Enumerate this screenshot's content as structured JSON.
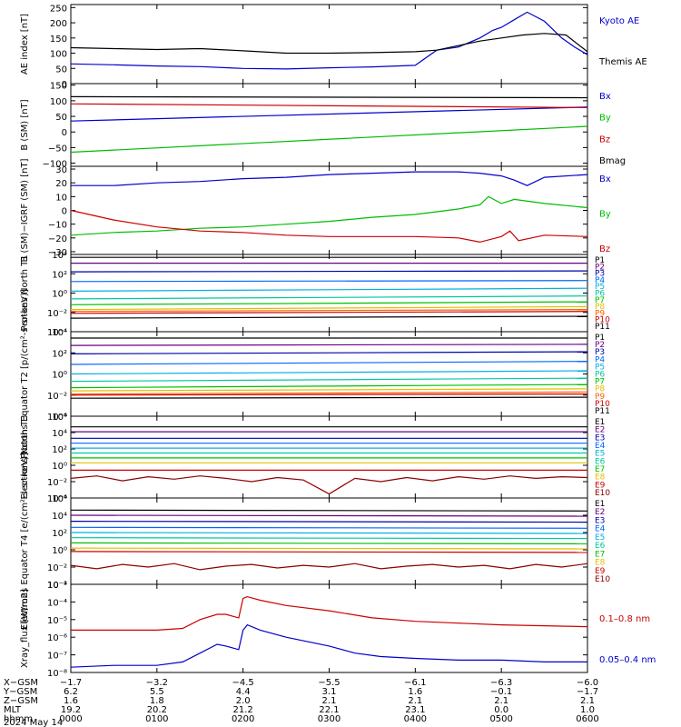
{
  "chart_data": [
    {
      "type": "line",
      "ylabel": "AE index [nT]",
      "yticks": [
        "0",
        "50",
        "100",
        "150",
        "200",
        "250"
      ],
      "ylim": [
        0,
        260
      ],
      "log": false,
      "series": [
        {
          "name": "Kyoto AE",
          "color": "#0000cc",
          "x": [
            0,
            0.5,
            1,
            1.5,
            2,
            2.5,
            3,
            3.5,
            4,
            4.25,
            4.5,
            4.75,
            4.9,
            5.0,
            5.15,
            5.3,
            5.5,
            5.7,
            5.85,
            6.0
          ],
          "values": [
            65,
            62,
            58,
            56,
            50,
            48,
            52,
            55,
            60,
            110,
            120,
            150,
            175,
            185,
            210,
            235,
            205,
            150,
            120,
            95
          ]
        },
        {
          "name": "Themis AE",
          "color": "#000000",
          "x": [
            0,
            0.5,
            1,
            1.5,
            2,
            2.5,
            3,
            3.5,
            4,
            4.25,
            4.5,
            4.75,
            5.0,
            5.25,
            5.5,
            5.75,
            6.0
          ],
          "values": [
            118,
            115,
            112,
            115,
            108,
            100,
            100,
            102,
            105,
            110,
            125,
            140,
            150,
            160,
            165,
            160,
            105
          ]
        }
      ]
    },
    {
      "type": "line",
      "ylabel": "B (SM) [nT]",
      "yticks": [
        "−100",
        "−50",
        "0",
        "50",
        "100",
        "150"
      ],
      "ylim": [
        -110,
        155
      ],
      "log": false,
      "series": [
        {
          "name": "Bx",
          "color": "#0000cc",
          "x": [
            0,
            6
          ],
          "values": [
            35,
            80
          ]
        },
        {
          "name": "By",
          "color": "#00bb00",
          "x": [
            0,
            6
          ],
          "values": [
            -65,
            18
          ]
        },
        {
          "name": "Bz",
          "color": "#cc0000",
          "x": [
            0,
            6
          ],
          "values": [
            90,
            78
          ]
        },
        {
          "name": "Bmag",
          "color": "#000000",
          "x": [
            0,
            6
          ],
          "values": [
            113,
            110
          ]
        }
      ]
    },
    {
      "type": "line",
      "ylabel": "B (SM)−IGRF (SM) [nT]",
      "yticks": [
        "−30",
        "−20",
        "−10",
        "0",
        "10",
        "20",
        "30"
      ],
      "ylim": [
        -32,
        32
      ],
      "log": false,
      "series": [
        {
          "name": "Bx",
          "color": "#0000cc",
          "x": [
            0,
            0.5,
            1,
            1.5,
            2,
            2.5,
            3,
            3.5,
            4,
            4.5,
            4.75,
            5.0,
            5.15,
            5.3,
            5.5,
            6.0
          ],
          "values": [
            18,
            18,
            20,
            21,
            23,
            24,
            26,
            27,
            28,
            28,
            27,
            25,
            22,
            18,
            24,
            26
          ]
        },
        {
          "name": "By",
          "color": "#00bb00",
          "x": [
            0,
            0.5,
            1,
            1.5,
            2,
            2.5,
            3,
            3.5,
            4,
            4.5,
            4.75,
            4.85,
            5.0,
            5.15,
            5.5,
            6.0
          ],
          "values": [
            -18,
            -16,
            -15,
            -13,
            -12,
            -10,
            -8,
            -5,
            -3,
            1,
            4,
            10,
            5,
            8,
            5,
            2
          ]
        },
        {
          "name": "Bz",
          "color": "#cc0000",
          "x": [
            0,
            0.5,
            1,
            1.5,
            2,
            2.5,
            3,
            3.5,
            4,
            4.5,
            4.75,
            5.0,
            5.1,
            5.2,
            5.5,
            6.0
          ],
          "values": [
            0,
            -7,
            -12,
            -15,
            -16,
            -18,
            -19,
            -19,
            -19,
            -20,
            -23,
            -19,
            -15,
            -22,
            -18,
            -19
          ]
        }
      ]
    },
    {
      "type": "line",
      "ylabel": "Protons North T1",
      "yticks": [
        "10⁻⁴",
        "10⁻²",
        "10⁰",
        "10²",
        "10⁴"
      ],
      "ylim": [
        -4,
        4
      ],
      "log": true,
      "series": [
        {
          "name": "P1",
          "color": "#000000",
          "logv": [
            3.7,
            3.7
          ]
        },
        {
          "name": "P2",
          "color": "#6a0080",
          "logv": [
            3.1,
            3.1
          ]
        },
        {
          "name": "P3",
          "color": "#0000aa",
          "logv": [
            2.2,
            2.3
          ]
        },
        {
          "name": "P4",
          "color": "#0066ff",
          "logv": [
            1.2,
            1.3
          ]
        },
        {
          "name": "P5",
          "color": "#00b0e0",
          "logv": [
            0.2,
            0.5
          ]
        },
        {
          "name": "P6",
          "color": "#00c8a0",
          "logv": [
            -0.6,
            -0.3
          ]
        },
        {
          "name": "P7",
          "color": "#00c000",
          "logv": [
            -1.2,
            -0.9
          ]
        },
        {
          "name": "P8",
          "color": "#e0c000",
          "logv": [
            -1.7,
            -1.4
          ]
        },
        {
          "name": "P9",
          "color": "#ff6000",
          "logv": [
            -1.9,
            -1.7
          ]
        },
        {
          "name": "P10",
          "color": "#cc0000",
          "logv": [
            -2.1,
            -1.9
          ]
        },
        {
          "name": "P11",
          "color": "#000000",
          "logv": [
            -2.6,
            -2.4
          ]
        }
      ]
    },
    {
      "type": "line",
      "ylabel": "Protons Equator T2 [p/(cm²-s-sr-keV)]",
      "yticks": [
        "10⁻⁴",
        "10⁻²",
        "10⁰",
        "10²",
        "10⁴"
      ],
      "ylim": [
        -4,
        4
      ],
      "log": true,
      "series": [
        {
          "name": "P1",
          "color": "#000000",
          "logv": [
            3.4,
            3.4
          ]
        },
        {
          "name": "P2",
          "color": "#6a0080",
          "logv": [
            2.7,
            2.8
          ]
        },
        {
          "name": "P3",
          "color": "#0000aa",
          "logv": [
            1.9,
            2.1
          ]
        },
        {
          "name": "P4",
          "color": "#0066ff",
          "logv": [
            0.9,
            1.2
          ]
        },
        {
          "name": "P5",
          "color": "#00b0e0",
          "logv": [
            0.0,
            0.3
          ]
        },
        {
          "name": "P6",
          "color": "#00c8a0",
          "logv": [
            -0.7,
            -0.4
          ]
        },
        {
          "name": "P7",
          "color": "#00c000",
          "logv": [
            -1.3,
            -1.0
          ]
        },
        {
          "name": "P8",
          "color": "#e0c000",
          "logv": [
            -1.6,
            -1.4
          ]
        },
        {
          "name": "P9",
          "color": "#ff6000",
          "logv": [
            -1.9,
            -1.7
          ]
        },
        {
          "name": "P10",
          "color": "#cc0000",
          "logv": [
            -2.0,
            -1.9
          ]
        },
        {
          "name": "P11",
          "color": "#000000",
          "logv": [
            -2.3,
            -2.2
          ]
        }
      ]
    },
    {
      "type": "line",
      "ylabel": "Electrons North T3",
      "yticks": [
        "10⁻⁴",
        "10⁻²",
        "10⁰",
        "10²",
        "10⁴",
        "10⁶"
      ],
      "ylim": [
        -4,
        6
      ],
      "log": true,
      "series": [
        {
          "name": "E1",
          "color": "#000000",
          "logv": [
            4.7,
            4.7
          ]
        },
        {
          "name": "E2",
          "color": "#6a0080",
          "logv": [
            4.1,
            4.1
          ]
        },
        {
          "name": "E3",
          "color": "#0000aa",
          "logv": [
            3.3,
            3.3
          ]
        },
        {
          "name": "E4",
          "color": "#0066ff",
          "logv": [
            2.7,
            2.7
          ]
        },
        {
          "name": "E5",
          "color": "#00b0e0",
          "logv": [
            2.1,
            2.1
          ]
        },
        {
          "name": "E6",
          "color": "#00c8a0",
          "logv": [
            1.5,
            1.5
          ]
        },
        {
          "name": "E7",
          "color": "#00c000",
          "logv": [
            0.9,
            0.9
          ]
        },
        {
          "name": "E8",
          "color": "#e0c000",
          "logv": [
            0.3,
            0.3
          ]
        },
        {
          "name": "E9",
          "color": "#cc0000",
          "logv": [
            -0.6,
            -0.6
          ]
        },
        {
          "name": "E10",
          "color": "#8b0000",
          "x": [
            0,
            0.3,
            0.6,
            0.9,
            1.2,
            1.5,
            1.8,
            2.1,
            2.4,
            2.7,
            3.0,
            3.3,
            3.6,
            3.9,
            4.2,
            4.5,
            4.8,
            5.1,
            5.4,
            5.7,
            6.0
          ],
          "logv": [
            -1.6,
            -1.3,
            -1.9,
            -1.4,
            -1.7,
            -1.3,
            -1.6,
            -2.0,
            -1.5,
            -1.8,
            -3.5,
            -1.6,
            -2.0,
            -1.5,
            -1.9,
            -1.4,
            -1.7,
            -1.3,
            -1.6,
            -1.4,
            -1.5
          ]
        }
      ]
    },
    {
      "type": "line",
      "ylabel": "Electrons Equator T4 [e/(cm²-s-sr-keV)]",
      "yticks": [
        "10⁻⁴",
        "10⁻²",
        "10⁰",
        "10²",
        "10⁴",
        "10⁶"
      ],
      "ylim": [
        -4,
        6
      ],
      "log": true,
      "series": [
        {
          "name": "E1",
          "color": "#000000",
          "logv": [
            4.6,
            4.5
          ]
        },
        {
          "name": "E2",
          "color": "#6a0080",
          "logv": [
            4.0,
            3.9
          ]
        },
        {
          "name": "E3",
          "color": "#0000aa",
          "logv": [
            3.3,
            3.2
          ]
        },
        {
          "name": "E4",
          "color": "#0066ff",
          "logv": [
            2.6,
            2.5
          ]
        },
        {
          "name": "E5",
          "color": "#00b0e0",
          "logv": [
            2.0,
            1.9
          ]
        },
        {
          "name": "E6",
          "color": "#00c8a0",
          "logv": [
            1.4,
            1.3
          ]
        },
        {
          "name": "E7",
          "color": "#00c000",
          "logv": [
            0.8,
            0.7
          ]
        },
        {
          "name": "E8",
          "color": "#e0c000",
          "logv": [
            0.2,
            0.1
          ]
        },
        {
          "name": "E9",
          "color": "#cc0000",
          "logv": [
            -0.2,
            -0.3
          ]
        },
        {
          "name": "E10",
          "color": "#8b0000",
          "x": [
            0,
            0.3,
            0.6,
            0.9,
            1.2,
            1.5,
            1.8,
            2.1,
            2.4,
            2.7,
            3.0,
            3.3,
            3.6,
            3.9,
            4.2,
            4.5,
            4.8,
            5.1,
            5.4,
            5.7,
            6.0
          ],
          "logv": [
            -1.8,
            -2.2,
            -1.7,
            -2.0,
            -1.6,
            -2.3,
            -1.9,
            -1.7,
            -2.1,
            -1.8,
            -2.0,
            -1.6,
            -2.2,
            -1.9,
            -1.7,
            -2.0,
            -1.8,
            -2.2,
            -1.7,
            -2.0,
            -1.6
          ]
        }
      ]
    },
    {
      "type": "line",
      "ylabel": "Xray_flux [W/m2]",
      "yticks": [
        "10⁻⁸",
        "10⁻⁷",
        "10⁻⁶",
        "10⁻⁵",
        "10⁻⁴",
        "10⁻³"
      ],
      "ylim": [
        -8,
        -3
      ],
      "log": true,
      "series": [
        {
          "name": "0.1–0.8 nm",
          "color": "#cc0000",
          "x": [
            0,
            0.5,
            1.0,
            1.3,
            1.5,
            1.7,
            1.8,
            1.95,
            2.0,
            2.05,
            2.2,
            2.5,
            3.0,
            3.5,
            4.0,
            4.5,
            5.0,
            5.5,
            6.0
          ],
          "logv": [
            -5.6,
            -5.6,
            -5.6,
            -5.5,
            -5.0,
            -4.7,
            -4.7,
            -4.9,
            -3.8,
            -3.7,
            -3.9,
            -4.2,
            -4.5,
            -4.9,
            -5.1,
            -5.2,
            -5.3,
            -5.35,
            -5.4
          ]
        },
        {
          "name": "0.05–0.4 nm",
          "color": "#0000cc",
          "x": [
            0,
            0.5,
            1.0,
            1.3,
            1.5,
            1.7,
            1.8,
            1.95,
            2.0,
            2.05,
            2.2,
            2.5,
            3.0,
            3.3,
            3.6,
            4.0,
            4.5,
            5.0,
            5.5,
            6.0
          ],
          "logv": [
            -7.7,
            -7.6,
            -7.6,
            -7.4,
            -6.9,
            -6.4,
            -6.5,
            -6.7,
            -5.6,
            -5.3,
            -5.6,
            -6.0,
            -6.5,
            -6.9,
            -7.1,
            -7.2,
            -7.3,
            -7.3,
            -7.4,
            -7.4
          ]
        }
      ]
    }
  ],
  "xaxis": {
    "row_labels": [
      "X−GSM",
      "Y−GSM",
      "Z−GSM",
      "MLT",
      "hhmm"
    ],
    "columns": [
      {
        "x": 0,
        "vals": [
          "−1.7",
          "6.2",
          "1.6",
          "19.2",
          "0000"
        ]
      },
      {
        "x": 1,
        "vals": [
          "−3.2",
          "5.5",
          "1.8",
          "20.2",
          "0100"
        ]
      },
      {
        "x": 2,
        "vals": [
          "−4.5",
          "4.4",
          "2.0",
          "21.2",
          "0200"
        ]
      },
      {
        "x": 3,
        "vals": [
          "−5.5",
          "3.1",
          "2.1",
          "22.1",
          "0300"
        ]
      },
      {
        "x": 4,
        "vals": [
          "−6.1",
          "1.6",
          "2.1",
          "23.1",
          "0400"
        ]
      },
      {
        "x": 5,
        "vals": [
          "−6.3",
          "−0.1",
          "2.1",
          "0.0",
          "0500"
        ]
      },
      {
        "x": 6,
        "vals": [
          "−6.0",
          "−1.7",
          "2.1",
          "1.0",
          "0600"
        ]
      }
    ],
    "date": "2024 May 14"
  }
}
